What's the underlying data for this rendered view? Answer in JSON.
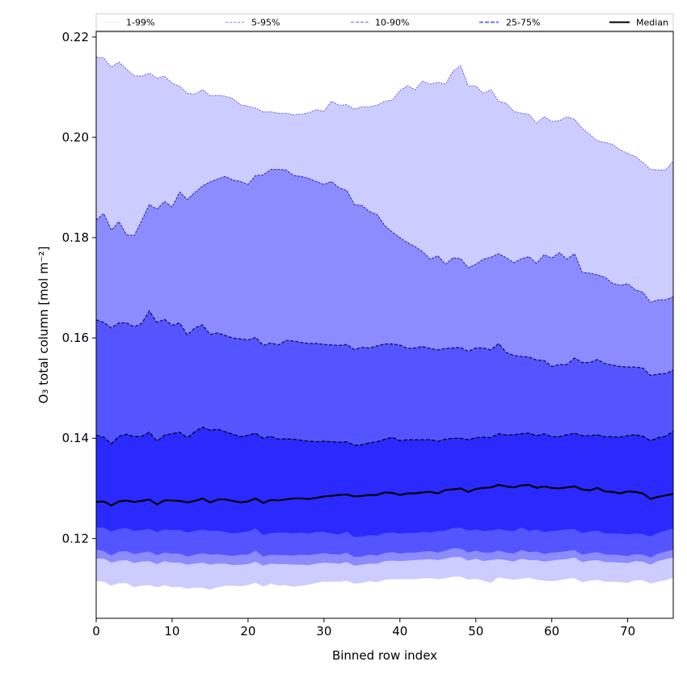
{
  "chart_data": {
    "type": "area",
    "title": "",
    "xlabel": "Binned row index",
    "ylabel": "O₃ total column [mol m⁻²]",
    "xlim": [
      0,
      76
    ],
    "ylim": [
      0.1041,
      0.2211
    ],
    "xticks": [
      0,
      10,
      20,
      30,
      40,
      50,
      60,
      70
    ],
    "xtick_labels": [
      "0",
      "10",
      "20",
      "30",
      "40",
      "50",
      "60",
      "70"
    ],
    "yticks": [
      0.12,
      0.14,
      0.16,
      0.18,
      0.2,
      0.22
    ],
    "ytick_labels": [
      "0.12",
      "0.14",
      "0.16",
      "0.18",
      "0.20",
      "0.22"
    ],
    "grid": false,
    "legend_position": "top (above plot, single row)",
    "legend": [
      {
        "label": "1-99%",
        "style": "dotted",
        "color": "#ccccff"
      },
      {
        "label": "5-95%",
        "style": "dashed",
        "color": "#8c8cff"
      },
      {
        "label": "10-90%",
        "style": "dashed",
        "color": "#5555ff"
      },
      {
        "label": "25-75%",
        "style": "dashed",
        "color": "#2a2aff"
      },
      {
        "label": "Median",
        "style": "solid",
        "color": "#000000"
      }
    ],
    "band_colors": {
      "p1_99": "#ccccff",
      "p5_95": "#8c8cff",
      "p10_90": "#5555ff",
      "p25_75": "#2a2aff"
    },
    "x": [
      0,
      1,
      2,
      3,
      4,
      5,
      6,
      7,
      8,
      9,
      10,
      11,
      12,
      13,
      14,
      15,
      16,
      17,
      18,
      19,
      20,
      21,
      22,
      23,
      24,
      25,
      26,
      27,
      28,
      29,
      30,
      31,
      32,
      33,
      34,
      35,
      36,
      37,
      38,
      39,
      40,
      41,
      42,
      43,
      44,
      45,
      46,
      47,
      48,
      49,
      50,
      51,
      52,
      53,
      54,
      55,
      56,
      57,
      58,
      59,
      60,
      61,
      62,
      63,
      64,
      65,
      66,
      67,
      68,
      69,
      70,
      71,
      72,
      73,
      74,
      75,
      76
    ],
    "series": [
      {
        "name": "p99",
        "values": [
          0.216,
          0.2158,
          0.214,
          0.215,
          0.2136,
          0.2123,
          0.2122,
          0.2128,
          0.2118,
          0.2122,
          0.2108,
          0.2102,
          0.2088,
          0.2086,
          0.2095,
          0.2083,
          0.2084,
          0.2082,
          0.2077,
          0.2065,
          0.2062,
          0.2058,
          0.2051,
          0.2051,
          0.2048,
          0.2048,
          0.2045,
          0.2046,
          0.2049,
          0.2055,
          0.2052,
          0.2072,
          0.2064,
          0.2065,
          0.2056,
          0.2061,
          0.2061,
          0.2064,
          0.2072,
          0.2074,
          0.2093,
          0.2103,
          0.2095,
          0.2112,
          0.2106,
          0.211,
          0.2106,
          0.2132,
          0.2143,
          0.2103,
          0.2102,
          0.2088,
          0.2095,
          0.2072,
          0.2068,
          0.2052,
          0.2048,
          0.2046,
          0.2028,
          0.2041,
          0.2032,
          0.2033,
          0.2041,
          0.2036,
          0.2018,
          0.2006,
          0.1993,
          0.199,
          0.1986,
          0.1975,
          0.1968,
          0.1962,
          0.195,
          0.1936,
          0.1935,
          0.1935,
          0.1953
        ]
      },
      {
        "name": "p95",
        "values": [
          0.1835,
          0.1848,
          0.1815,
          0.1832,
          0.1806,
          0.1804,
          0.1834,
          0.1866,
          0.1857,
          0.1872,
          0.1861,
          0.1891,
          0.1876,
          0.189,
          0.1903,
          0.1911,
          0.1917,
          0.1922,
          0.1915,
          0.1912,
          0.1906,
          0.1924,
          0.1925,
          0.1936,
          0.1936,
          0.1935,
          0.1924,
          0.1922,
          0.1918,
          0.1912,
          0.1906,
          0.1912,
          0.1899,
          0.1894,
          0.1866,
          0.1864,
          0.1852,
          0.1846,
          0.1824,
          0.1811,
          0.18,
          0.179,
          0.1782,
          0.1772,
          0.1757,
          0.1764,
          0.1747,
          0.176,
          0.1758,
          0.174,
          0.1747,
          0.1757,
          0.1761,
          0.1768,
          0.176,
          0.175,
          0.1758,
          0.1762,
          0.1749,
          0.1766,
          0.1759,
          0.177,
          0.1757,
          0.1768,
          0.1731,
          0.1729,
          0.1726,
          0.1721,
          0.1709,
          0.1705,
          0.1708,
          0.1696,
          0.1691,
          0.1671,
          0.1676,
          0.1676,
          0.1682
        ]
      },
      {
        "name": "p90",
        "values": [
          0.1636,
          0.1631,
          0.162,
          0.163,
          0.163,
          0.1622,
          0.1629,
          0.1654,
          0.1631,
          0.1637,
          0.1625,
          0.163,
          0.1606,
          0.162,
          0.1626,
          0.1607,
          0.161,
          0.1605,
          0.16,
          0.1598,
          0.1596,
          0.1601,
          0.1585,
          0.159,
          0.1586,
          0.1595,
          0.1594,
          0.1591,
          0.1589,
          0.1589,
          0.1587,
          0.1586,
          0.1585,
          0.1587,
          0.1577,
          0.1581,
          0.158,
          0.1584,
          0.1588,
          0.1588,
          0.1586,
          0.1579,
          0.158,
          0.1583,
          0.1579,
          0.1576,
          0.1579,
          0.158,
          0.1581,
          0.1573,
          0.158,
          0.158,
          0.1576,
          0.1589,
          0.1571,
          0.1565,
          0.1563,
          0.1562,
          0.1556,
          0.1555,
          0.1543,
          0.1547,
          0.1547,
          0.156,
          0.1551,
          0.1551,
          0.1557,
          0.1549,
          0.1546,
          0.1543,
          0.1542,
          0.1542,
          0.154,
          0.1525,
          0.1528,
          0.1529,
          0.1536
        ]
      },
      {
        "name": "p75",
        "values": [
          0.1406,
          0.1402,
          0.1389,
          0.1404,
          0.1408,
          0.1403,
          0.1404,
          0.1412,
          0.1394,
          0.1406,
          0.1409,
          0.1412,
          0.1401,
          0.1413,
          0.1422,
          0.1416,
          0.1418,
          0.1413,
          0.1408,
          0.1403,
          0.1406,
          0.141,
          0.14,
          0.1404,
          0.1398,
          0.1399,
          0.1398,
          0.1396,
          0.1394,
          0.1393,
          0.1394,
          0.1393,
          0.1392,
          0.1393,
          0.1386,
          0.1387,
          0.1391,
          0.1393,
          0.1398,
          0.1402,
          0.1395,
          0.1397,
          0.1397,
          0.1397,
          0.1397,
          0.1394,
          0.1398,
          0.14,
          0.14,
          0.1397,
          0.1401,
          0.1402,
          0.1401,
          0.1409,
          0.1406,
          0.1407,
          0.1409,
          0.141,
          0.1405,
          0.1409,
          0.1403,
          0.1403,
          0.1407,
          0.141,
          0.1405,
          0.1405,
          0.1407,
          0.1403,
          0.1403,
          0.1402,
          0.1405,
          0.1407,
          0.1404,
          0.1395,
          0.1401,
          0.1404,
          0.1414
        ]
      },
      {
        "name": "median",
        "values": [
          0.1273,
          0.1274,
          0.1266,
          0.1274,
          0.1276,
          0.1273,
          0.1275,
          0.1278,
          0.1268,
          0.1276,
          0.1276,
          0.1275,
          0.1272,
          0.1275,
          0.128,
          0.1272,
          0.1278,
          0.1278,
          0.1275,
          0.1272,
          0.1274,
          0.128,
          0.1271,
          0.1277,
          0.1276,
          0.1278,
          0.128,
          0.128,
          0.1279,
          0.1281,
          0.1284,
          0.1285,
          0.1287,
          0.1288,
          0.1284,
          0.1285,
          0.1287,
          0.1287,
          0.1292,
          0.1291,
          0.1287,
          0.129,
          0.129,
          0.1292,
          0.1293,
          0.129,
          0.1297,
          0.1298,
          0.13,
          0.1293,
          0.1299,
          0.1301,
          0.1302,
          0.1307,
          0.1304,
          0.1302,
          0.1306,
          0.1307,
          0.1301,
          0.1304,
          0.1301,
          0.13,
          0.1302,
          0.1304,
          0.1298,
          0.1296,
          0.1301,
          0.1294,
          0.1293,
          0.129,
          0.1294,
          0.1293,
          0.129,
          0.1279,
          0.1283,
          0.1286,
          0.1289
        ]
      },
      {
        "name": "p25",
        "values": [
          0.1222,
          0.1222,
          0.1214,
          0.1219,
          0.1221,
          0.1215,
          0.1217,
          0.1219,
          0.1213,
          0.1218,
          0.1217,
          0.1217,
          0.1212,
          0.1215,
          0.1218,
          0.1215,
          0.1216,
          0.1213,
          0.121,
          0.1212,
          0.1214,
          0.122,
          0.1207,
          0.1211,
          0.1212,
          0.1212,
          0.121,
          0.1212,
          0.121,
          0.1213,
          0.1213,
          0.121,
          0.1208,
          0.1214,
          0.1203,
          0.1204,
          0.1207,
          0.1206,
          0.1211,
          0.1212,
          0.121,
          0.1211,
          0.1211,
          0.1213,
          0.1212,
          0.1215,
          0.1216,
          0.1221,
          0.1221,
          0.1216,
          0.1218,
          0.1215,
          0.1216,
          0.1219,
          0.1216,
          0.1215,
          0.1222,
          0.1215,
          0.1218,
          0.1213,
          0.1215,
          0.1216,
          0.1218,
          0.1219,
          0.1211,
          0.1214,
          0.1216,
          0.121,
          0.121,
          0.121,
          0.1208,
          0.121,
          0.1209,
          0.1204,
          0.1211,
          0.1216,
          0.122
        ]
      },
      {
        "name": "p10",
        "values": [
          0.1178,
          0.1175,
          0.1166,
          0.1174,
          0.1175,
          0.1169,
          0.1172,
          0.1174,
          0.1167,
          0.1172,
          0.117,
          0.117,
          0.1164,
          0.1168,
          0.1171,
          0.1168,
          0.1169,
          0.1167,
          0.1165,
          0.1168,
          0.1168,
          0.1176,
          0.1164,
          0.1168,
          0.1167,
          0.1167,
          0.1166,
          0.1168,
          0.1167,
          0.1169,
          0.1171,
          0.1169,
          0.1168,
          0.1172,
          0.1163,
          0.1164,
          0.1168,
          0.1166,
          0.1171,
          0.1173,
          0.117,
          0.1172,
          0.1172,
          0.1174,
          0.1175,
          0.1172,
          0.1176,
          0.1181,
          0.118,
          0.1172,
          0.1176,
          0.1172,
          0.1172,
          0.1176,
          0.1172,
          0.117,
          0.1177,
          0.1173,
          0.1174,
          0.1169,
          0.1172,
          0.1173,
          0.1175,
          0.1177,
          0.1168,
          0.1171,
          0.1173,
          0.1168,
          0.1168,
          0.1167,
          0.1165,
          0.1169,
          0.1168,
          0.1162,
          0.117,
          0.1174,
          0.1178
        ]
      },
      {
        "name": "p5",
        "values": [
          0.116,
          0.116,
          0.1152,
          0.1156,
          0.1157,
          0.1151,
          0.1154,
          0.1155,
          0.1149,
          0.1155,
          0.1152,
          0.1152,
          0.1148,
          0.115,
          0.1152,
          0.1148,
          0.115,
          0.115,
          0.1147,
          0.1148,
          0.1149,
          0.1154,
          0.1146,
          0.115,
          0.1149,
          0.1149,
          0.1148,
          0.1148,
          0.1147,
          0.115,
          0.1152,
          0.1151,
          0.115,
          0.1153,
          0.1146,
          0.1148,
          0.115,
          0.115,
          0.1155,
          0.1156,
          0.1155,
          0.1156,
          0.1157,
          0.1158,
          0.1159,
          0.1157,
          0.116,
          0.1163,
          0.1163,
          0.1156,
          0.116,
          0.1155,
          0.1157,
          0.1159,
          0.1157,
          0.1154,
          0.116,
          0.1157,
          0.1157,
          0.1154,
          0.1156,
          0.1158,
          0.1159,
          0.1162,
          0.1153,
          0.1156,
          0.1157,
          0.1153,
          0.1153,
          0.1152,
          0.1151,
          0.1155,
          0.1154,
          0.1148,
          0.1155,
          0.1159,
          0.1162
        ]
      },
      {
        "name": "p1",
        "values": [
          0.1115,
          0.1114,
          0.1106,
          0.1111,
          0.1111,
          0.1103,
          0.1106,
          0.1107,
          0.1103,
          0.1107,
          0.1103,
          0.1104,
          0.11,
          0.1102,
          0.1102,
          0.1098,
          0.1103,
          0.1106,
          0.1106,
          0.1105,
          0.1107,
          0.1112,
          0.1104,
          0.111,
          0.1106,
          0.1107,
          0.1104,
          0.1106,
          0.1108,
          0.1112,
          0.1114,
          0.1114,
          0.1114,
          0.1116,
          0.111,
          0.1112,
          0.1115,
          0.1113,
          0.1118,
          0.1119,
          0.1119,
          0.1119,
          0.1119,
          0.1121,
          0.1121,
          0.1119,
          0.1121,
          0.1124,
          0.1124,
          0.1118,
          0.112,
          0.1116,
          0.1112,
          0.1123,
          0.112,
          0.1118,
          0.112,
          0.1122,
          0.1118,
          0.1116,
          0.1115,
          0.1117,
          0.112,
          0.1121,
          0.1113,
          0.1116,
          0.1118,
          0.1114,
          0.1114,
          0.1113,
          0.1112,
          0.1117,
          0.1117,
          0.111,
          0.1114,
          0.1117,
          0.1122
        ]
      }
    ]
  }
}
